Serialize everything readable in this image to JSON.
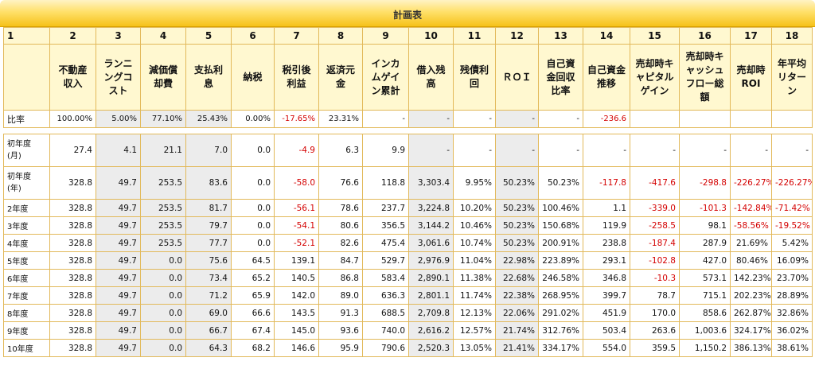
{
  "title": "計画表",
  "col_numbers": [
    "1",
    "2",
    "3",
    "4",
    "5",
    "6",
    "7",
    "8",
    "9",
    "10",
    "11",
    "12",
    "13",
    "14",
    "15",
    "16",
    "17",
    "18"
  ],
  "headers": [
    "",
    "不動産\n収入",
    "ランニ\nングコ\nスト",
    "減価償\n却費",
    "支払利\n息",
    "納税",
    "税引後\n利益",
    "返済元\n金",
    "インカ\nムゲイ\nン累計",
    "借入残\n高",
    "残債利\n回",
    "ＲＯＩ",
    "自己資\n金回収\n比率",
    "自己資金\n推移",
    "売却時キ\nャピタル\nゲイン",
    "売却時キ\nャッシュ\nフロー総\n額",
    "売却時\nROI",
    "年平均\nリター\nン"
  ],
  "ratio_row": {
    "label": "比率",
    "cells": [
      "100.00%",
      "5.00%",
      "77.10%",
      "25.43%",
      "0.00%",
      "-17.65%",
      "23.31%",
      "-",
      "-",
      "-",
      "-",
      "-",
      "-236.6",
      "",
      "",
      "",
      ""
    ]
  },
  "rows": [
    {
      "label": "初年度\n(月)",
      "tall": true,
      "cells": [
        "27.4",
        "4.1",
        "21.1",
        "7.0",
        "0.0",
        "-4.9",
        "6.3",
        "9.9",
        "-",
        "-",
        "-",
        "-",
        "-",
        "-",
        "-",
        "-",
        "-"
      ]
    },
    {
      "label": "初年度\n(年)",
      "tall": true,
      "cells": [
        "328.8",
        "49.7",
        "253.5",
        "83.6",
        "0.0",
        "-58.0",
        "76.6",
        "118.8",
        "3,303.4",
        "9.95%",
        "50.23%",
        "50.23%",
        "-117.8",
        "-417.6",
        "-298.8",
        "-226.27%",
        "-226.27%"
      ]
    },
    {
      "label": "2年度",
      "cells": [
        "328.8",
        "49.7",
        "253.5",
        "81.7",
        "0.0",
        "-56.1",
        "78.6",
        "237.7",
        "3,224.8",
        "10.20%",
        "50.23%",
        "100.46%",
        "1.1",
        "-339.0",
        "-101.3",
        "-142.84%",
        "-71.42%"
      ]
    },
    {
      "label": "3年度",
      "cells": [
        "328.8",
        "49.7",
        "253.5",
        "79.7",
        "0.0",
        "-54.1",
        "80.6",
        "356.5",
        "3,144.2",
        "10.46%",
        "50.23%",
        "150.68%",
        "119.9",
        "-258.5",
        "98.1",
        "-58.56%",
        "-19.52%"
      ]
    },
    {
      "label": "4年度",
      "cells": [
        "328.8",
        "49.7",
        "253.5",
        "77.7",
        "0.0",
        "-52.1",
        "82.6",
        "475.4",
        "3,061.6",
        "10.74%",
        "50.23%",
        "200.91%",
        "238.8",
        "-187.4",
        "287.9",
        "21.69%",
        "5.42%"
      ]
    },
    {
      "label": "5年度",
      "cells": [
        "328.8",
        "49.7",
        "0.0",
        "75.6",
        "64.5",
        "139.1",
        "84.7",
        "529.7",
        "2,976.9",
        "11.04%",
        "22.98%",
        "223.89%",
        "293.1",
        "-102.8",
        "427.0",
        "80.46%",
        "16.09%"
      ]
    },
    {
      "label": "6年度",
      "cells": [
        "328.8",
        "49.7",
        "0.0",
        "73.4",
        "65.2",
        "140.5",
        "86.8",
        "583.4",
        "2,890.1",
        "11.38%",
        "22.68%",
        "246.58%",
        "346.8",
        "-10.3",
        "573.1",
        "142.23%",
        "23.70%"
      ]
    },
    {
      "label": "7年度",
      "cells": [
        "328.8",
        "49.7",
        "0.0",
        "71.2",
        "65.9",
        "142.0",
        "89.0",
        "636.3",
        "2,801.1",
        "11.74%",
        "22.38%",
        "268.95%",
        "399.7",
        "78.7",
        "715.1",
        "202.23%",
        "28.89%"
      ]
    },
    {
      "label": "8年度",
      "cells": [
        "328.8",
        "49.7",
        "0.0",
        "69.0",
        "66.6",
        "143.5",
        "91.3",
        "688.5",
        "2,709.8",
        "12.13%",
        "22.06%",
        "291.02%",
        "451.9",
        "170.0",
        "858.6",
        "262.87%",
        "32.86%"
      ]
    },
    {
      "label": "9年度",
      "cells": [
        "328.8",
        "49.7",
        "0.0",
        "66.7",
        "67.4",
        "145.0",
        "93.6",
        "740.0",
        "2,616.2",
        "12.57%",
        "21.74%",
        "312.76%",
        "503.4",
        "263.6",
        "1,003.6",
        "324.17%",
        "36.02%"
      ]
    },
    {
      "label": "10年度",
      "cells": [
        "328.8",
        "49.7",
        "0.0",
        "64.3",
        "68.2",
        "146.6",
        "95.9",
        "790.6",
        "2,520.3",
        "13.05%",
        "21.41%",
        "334.17%",
        "554.0",
        "359.5",
        "1,150.2",
        "386.13%",
        "38.61%"
      ]
    }
  ],
  "colors": {
    "negative": "#d40000",
    "header_bg": "#fff8d0",
    "title_bar": "#f6c21a",
    "shade": "#ececec"
  }
}
